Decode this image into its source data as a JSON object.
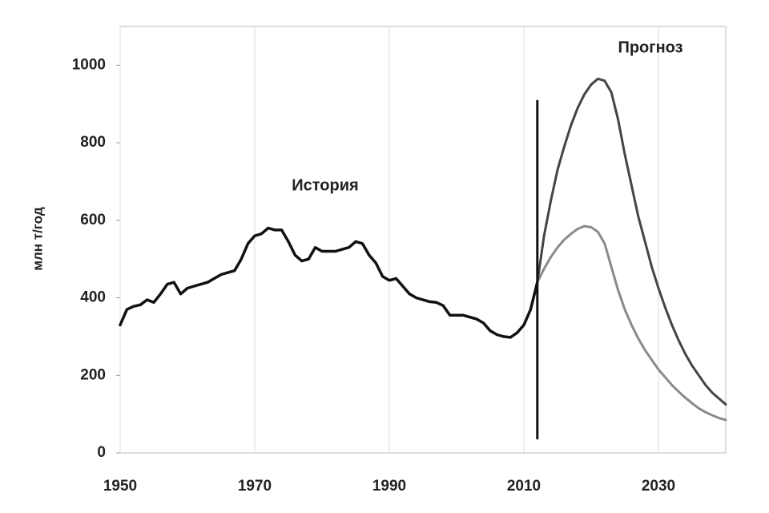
{
  "chart_data": {
    "type": "line",
    "ylabel": "млн т/год",
    "xlim": [
      1950,
      2040
    ],
    "xticks": [
      1950,
      1970,
      1990,
      2010,
      2030
    ],
    "ylim": [
      0,
      1100
    ],
    "yticks": [
      0,
      200,
      400,
      600,
      800,
      1000
    ],
    "grid": "x",
    "annotations": [
      "История",
      "Прогноз"
    ],
    "divider": {
      "x": 2012,
      "y": [
        35,
        910
      ],
      "color": "#111"
    },
    "series": [
      {
        "color": "#111",
        "width": 3.5,
        "x": [
          1950,
          1951,
          1952,
          1953,
          1954,
          1955,
          1956,
          1957,
          1958,
          1959,
          1960,
          1961,
          1962,
          1963,
          1964,
          1965,
          1966,
          1967,
          1968,
          1969,
          1970,
          1971,
          1972,
          1973,
          1974,
          1975,
          1976,
          1977,
          1978,
          1979,
          1980,
          1981,
          1982,
          1983,
          1984,
          1985,
          1986,
          1987,
          1988,
          1989,
          1990,
          1991,
          1992,
          1993,
          1994,
          1995,
          1996,
          1997,
          1998,
          1999,
          2000,
          2001,
          2002,
          2003,
          2004,
          2005,
          2006,
          2007,
          2008,
          2009,
          2010,
          2011,
          2012
        ],
        "values": [
          330,
          370,
          378,
          382,
          395,
          388,
          410,
          435,
          440,
          410,
          425,
          430,
          435,
          440,
          450,
          460,
          465,
          470,
          500,
          540,
          560,
          565,
          580,
          575,
          575,
          545,
          510,
          495,
          500,
          530,
          520,
          520,
          520,
          525,
          530,
          545,
          540,
          510,
          490,
          455,
          445,
          450,
          430,
          410,
          400,
          395,
          390,
          388,
          380,
          355,
          355,
          355,
          350,
          345,
          335,
          315,
          305,
          300,
          298,
          310,
          330,
          370,
          440
        ]
      },
      {
        "color": "#444",
        "width": 3,
        "x": [
          2012,
          2013,
          2014,
          2015,
          2016,
          2017,
          2018,
          2019,
          2020,
          2021,
          2022,
          2023,
          2024,
          2025,
          2026,
          2027,
          2028,
          2029,
          2030,
          2031,
          2032,
          2033,
          2034,
          2035,
          2036,
          2037,
          2038,
          2039,
          2040
        ],
        "values": [
          440,
          560,
          650,
          730,
          790,
          845,
          890,
          925,
          950,
          965,
          960,
          930,
          860,
          770,
          690,
          610,
          545,
          480,
          425,
          375,
          330,
          290,
          255,
          225,
          200,
          175,
          155,
          140,
          125
        ]
      },
      {
        "color": "#8a8a8a",
        "width": 3,
        "x": [
          2012,
          2013,
          2014,
          2015,
          2016,
          2017,
          2018,
          2019,
          2020,
          2021,
          2022,
          2023,
          2024,
          2025,
          2026,
          2027,
          2028,
          2029,
          2030,
          2031,
          2032,
          2033,
          2034,
          2035,
          2036,
          2037,
          2038,
          2039,
          2040
        ],
        "values": [
          440,
          475,
          505,
          530,
          550,
          565,
          578,
          585,
          582,
          570,
          540,
          480,
          420,
          370,
          330,
          295,
          265,
          240,
          215,
          195,
          175,
          158,
          142,
          128,
          115,
          105,
          97,
          90,
          85
        ]
      }
    ]
  }
}
